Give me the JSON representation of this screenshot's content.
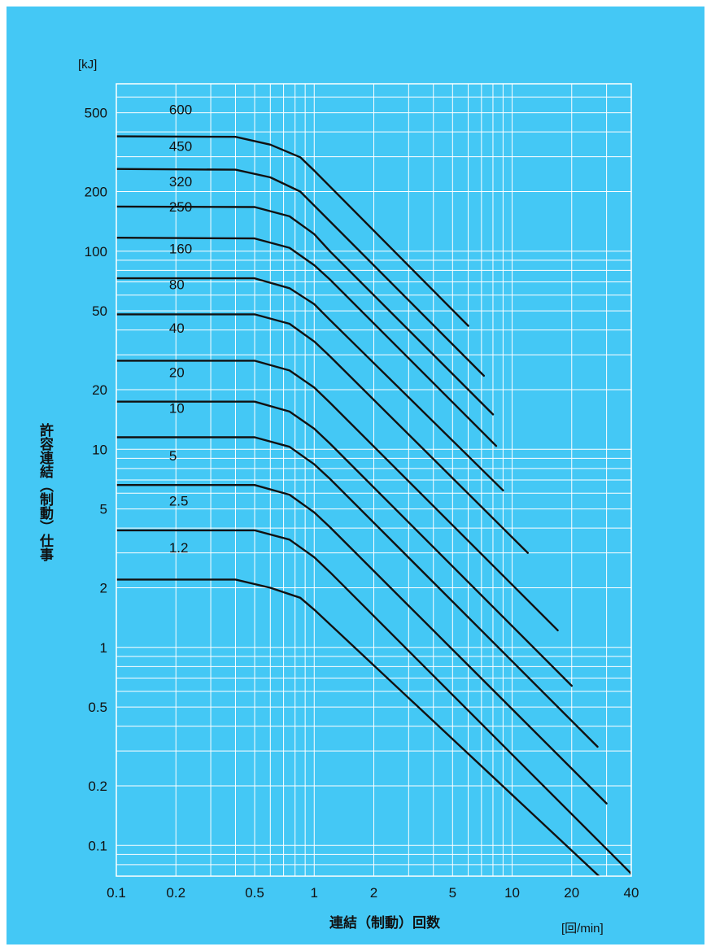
{
  "chart_data": {
    "type": "line",
    "title": "",
    "xlabel": "連結（制動）回数",
    "xunit": "[回/min]",
    "ylabel": "許容連結（制動）仕事",
    "yunit": "[kJ]",
    "xscale": "log",
    "yscale": "log",
    "xlim": [
      0.1,
      40
    ],
    "ylim": [
      0.07,
      700
    ],
    "grid": true,
    "xticks": [
      {
        "value": 0.1,
        "label": "0.1"
      },
      {
        "value": 0.2,
        "label": "0.2"
      },
      {
        "value": 0.5,
        "label": "0.5"
      },
      {
        "value": 1,
        "label": "1"
      },
      {
        "value": 2,
        "label": "2"
      },
      {
        "value": 5,
        "label": "5"
      },
      {
        "value": 10,
        "label": "10"
      },
      {
        "value": 20,
        "label": "20"
      },
      {
        "value": 40,
        "label": "40"
      }
    ],
    "yticks": [
      {
        "value": 500,
        "label": "500"
      },
      {
        "value": 200,
        "label": "200"
      },
      {
        "value": 100,
        "label": "100"
      },
      {
        "value": 50,
        "label": "50"
      },
      {
        "value": 20,
        "label": "20"
      },
      {
        "value": 10,
        "label": "10"
      },
      {
        "value": 5,
        "label": "5"
      },
      {
        "value": 2,
        "label": "2"
      },
      {
        "value": 1,
        "label": "1"
      },
      {
        "value": 0.5,
        "label": "0.5"
      },
      {
        "value": 0.2,
        "label": "0.2"
      },
      {
        "value": 0.1,
        "label": "0.1"
      }
    ],
    "series": [
      {
        "name": "600",
        "label_at": [
          0.15,
          520
        ],
        "points": [
          [
            0.1,
            380
          ],
          [
            0.4,
            378
          ],
          [
            0.6,
            345
          ],
          [
            0.85,
            298
          ],
          [
            1.0,
            255
          ],
          [
            6.0,
            42
          ]
        ]
      },
      {
        "name": "450",
        "label_at": [
          0.15,
          340
        ],
        "points": [
          [
            0.1,
            260
          ],
          [
            0.4,
            258
          ],
          [
            0.6,
            236
          ],
          [
            0.85,
            200
          ],
          [
            1.0,
            170
          ],
          [
            7.2,
            23.5
          ]
        ]
      },
      {
        "name": "320",
        "label_at": [
          0.15,
          225
        ],
        "points": [
          [
            0.1,
            168
          ],
          [
            0.5,
            167
          ],
          [
            0.75,
            150
          ],
          [
            1.0,
            122
          ],
          [
            1.2,
            100
          ],
          [
            8.0,
            15
          ]
        ]
      },
      {
        "name": "250",
        "label_at": [
          0.15,
          168
        ],
        "points": [
          [
            0.1,
            117
          ],
          [
            0.5,
            116
          ],
          [
            0.75,
            104
          ],
          [
            1.0,
            85
          ],
          [
            1.2,
            72
          ],
          [
            8.3,
            10.4
          ]
        ]
      },
      {
        "name": "160",
        "label_at": [
          0.15,
          103
        ],
        "points": [
          [
            0.1,
            73
          ],
          [
            0.5,
            73
          ],
          [
            0.75,
            65
          ],
          [
            1.0,
            54
          ],
          [
            1.2,
            45
          ],
          [
            9.0,
            6.2
          ]
        ]
      },
      {
        "name": "80",
        "label_at": [
          0.15,
          68
        ],
        "points": [
          [
            0.1,
            48
          ],
          [
            0.5,
            48
          ],
          [
            0.75,
            43
          ],
          [
            1.0,
            35
          ],
          [
            1.2,
            29.5
          ],
          [
            12.0,
            3.0
          ]
        ]
      },
      {
        "name": "40",
        "label_at": [
          0.15,
          41
        ],
        "points": [
          [
            0.1,
            28
          ],
          [
            0.5,
            28
          ],
          [
            0.75,
            25
          ],
          [
            1.0,
            20.5
          ],
          [
            1.2,
            17.2
          ],
          [
            17.0,
            1.22
          ]
        ]
      },
      {
        "name": "20",
        "label_at": [
          0.15,
          24.5
        ],
        "points": [
          [
            0.1,
            17.4
          ],
          [
            0.5,
            17.4
          ],
          [
            0.75,
            15.5
          ],
          [
            1.0,
            12.7
          ],
          [
            1.2,
            10.7
          ],
          [
            20.0,
            0.64
          ]
        ]
      },
      {
        "name": "10",
        "label_at": [
          0.15,
          16.2
        ],
        "points": [
          [
            0.1,
            11.5
          ],
          [
            0.5,
            11.5
          ],
          [
            0.75,
            10.3
          ],
          [
            1.0,
            8.4
          ],
          [
            1.2,
            7.1
          ],
          [
            27.0,
            0.315
          ]
        ]
      },
      {
        "name": "5",
        "label_at": [
          0.15,
          9.3
        ],
        "points": [
          [
            0.1,
            6.6
          ],
          [
            0.5,
            6.6
          ],
          [
            0.75,
            5.9
          ],
          [
            1.0,
            4.8
          ],
          [
            1.2,
            4.05
          ],
          [
            30.0,
            0.163
          ]
        ]
      },
      {
        "name": "2.5",
        "label_at": [
          0.15,
          5.5
        ],
        "points": [
          [
            0.1,
            3.9
          ],
          [
            0.5,
            3.9
          ],
          [
            0.75,
            3.5
          ],
          [
            1.0,
            2.85
          ],
          [
            1.2,
            2.4
          ],
          [
            40.0,
            0.072
          ]
        ]
      },
      {
        "name": "1.2",
        "label_at": [
          0.15,
          3.2
        ],
        "points": [
          [
            0.1,
            2.2
          ],
          [
            0.4,
            2.2
          ],
          [
            0.6,
            2.0
          ],
          [
            0.85,
            1.78
          ],
          [
            1.0,
            1.55
          ],
          [
            37.0,
            0.053
          ]
        ]
      }
    ]
  }
}
